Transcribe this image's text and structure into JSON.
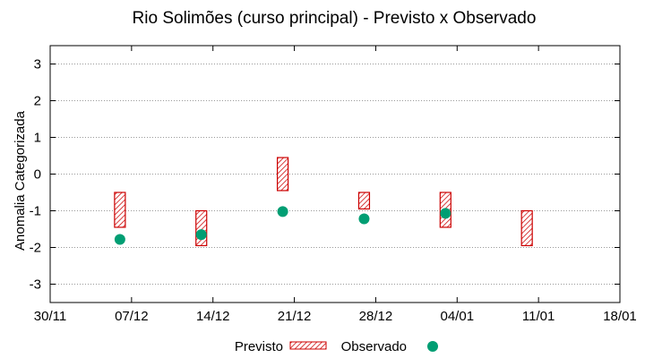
{
  "chart_data": {
    "type": "range-and-scatter",
    "title": "Rio Solimões (curso principal) - Previsto x Observado",
    "ylabel": "Anomalia Categorizada",
    "xlabel": "",
    "x_ticks": [
      "30/11",
      "07/12",
      "14/12",
      "21/12",
      "28/12",
      "04/01",
      "11/01",
      "18/01"
    ],
    "y_ticks": [
      "3",
      "2",
      "1",
      "0",
      "-1",
      "-2",
      "-3"
    ],
    "ylim": [
      -3.5,
      3.5
    ],
    "xlim": [
      "30/11",
      "18/01"
    ],
    "grid": "horizontal dotted",
    "legend_position": "bottom",
    "series": [
      {
        "name": "Previsto",
        "style": "hatched-box",
        "color": "#cc0000",
        "points": [
          {
            "x": "06/12",
            "low": -1.45,
            "high": -0.5
          },
          {
            "x": "13/12",
            "low": -1.95,
            "high": -1.0
          },
          {
            "x": "20/12",
            "low": -0.45,
            "high": 0.45
          },
          {
            "x": "27/12",
            "low": -0.95,
            "high": -0.5
          },
          {
            "x": "03/01",
            "low": -1.45,
            "high": -0.5
          },
          {
            "x": "10/01",
            "low": -1.95,
            "high": -1.0
          }
        ]
      },
      {
        "name": "Observado",
        "style": "dot",
        "color": "#009e73",
        "points": [
          {
            "x": "06/12",
            "y": -1.78
          },
          {
            "x": "13/12",
            "y": -1.65
          },
          {
            "x": "20/12",
            "y": -1.02
          },
          {
            "x": "27/12",
            "y": -1.22
          },
          {
            "x": "03/01",
            "y": -1.07
          }
        ]
      }
    ]
  }
}
